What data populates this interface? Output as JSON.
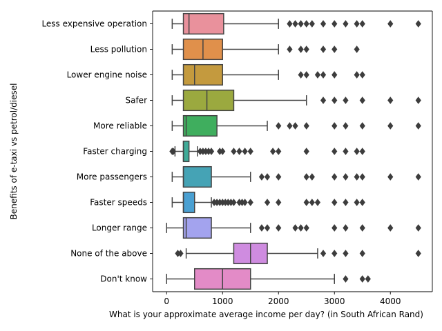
{
  "chart_data": {
    "type": "boxplot",
    "orientation": "horizontal",
    "xlabel": "What is your approximate average income per day? (in South African Rand)",
    "ylabel": "Benefits of e-taxi vs petrol/diesel",
    "xlim": [
      -250,
      4750
    ],
    "xticks": [
      0,
      1000,
      2000,
      3000,
      4000
    ],
    "grid": false,
    "categories": [
      "Less expensive operation",
      "Less pollution",
      "Lower engine noise",
      "Safer",
      "More reliable",
      "Faster charging",
      "More passengers",
      "Faster speeds",
      "Longer range",
      "None of the above",
      "Don't know"
    ],
    "boxes": [
      {
        "category": "Less expensive operation",
        "color": "#e9919c",
        "whisker_low": 100,
        "q1": 300,
        "median": 400,
        "q3": 1020,
        "whisker_high": 2000,
        "outliers": [
          2200,
          2300,
          2400,
          2500,
          2600,
          2800,
          3000,
          3200,
          3400,
          3500,
          4000,
          4500
        ]
      },
      {
        "category": "Less pollution",
        "color": "#e0904b",
        "whisker_low": 100,
        "q1": 300,
        "median": 650,
        "q3": 1000,
        "whisker_high": 2000,
        "outliers": [
          2200,
          2400,
          2500,
          2800,
          3000,
          3400
        ]
      },
      {
        "category": "Lower engine noise",
        "color": "#c49a3e",
        "whisker_low": 100,
        "q1": 300,
        "median": 500,
        "q3": 1000,
        "whisker_high": 2000,
        "outliers": [
          2400,
          2500,
          2700,
          2800,
          3000,
          3400,
          3500
        ]
      },
      {
        "category": "Safer",
        "color": "#9ba93f",
        "whisker_low": 100,
        "q1": 300,
        "median": 720,
        "q3": 1200,
        "whisker_high": 2500,
        "outliers": [
          2800,
          3000,
          3200,
          3500,
          4000,
          4500
        ]
      },
      {
        "category": "More reliable",
        "color": "#3fae5e",
        "whisker_low": 100,
        "q1": 300,
        "median": 350,
        "q3": 900,
        "whisker_high": 1800,
        "outliers": [
          2000,
          2200,
          2300,
          2500,
          3000,
          3200,
          3500,
          4000,
          4500
        ]
      },
      {
        "category": "Faster charging",
        "color": "#40ab98",
        "whisker_low": 150,
        "q1": 300,
        "median": 300,
        "q3": 400,
        "whisker_high": 550,
        "outliers": [
          100,
          120,
          600,
          650,
          700,
          750,
          800,
          950,
          1000,
          1200,
          1300,
          1400,
          1500,
          1900,
          2000,
          2500,
          3000,
          3200,
          3400,
          3500
        ]
      },
      {
        "category": "More passengers",
        "color": "#45a3b5",
        "whisker_low": 100,
        "q1": 300,
        "median": 300,
        "q3": 800,
        "whisker_high": 1500,
        "outliers": [
          1700,
          1800,
          2000,
          2500,
          2600,
          3000,
          3200,
          3400,
          3500,
          4000,
          4500
        ]
      },
      {
        "category": "Faster speeds",
        "color": "#4aa0d2",
        "whisker_low": 100,
        "q1": 300,
        "median": 300,
        "q3": 500,
        "whisker_high": 800,
        "outliers": [
          850,
          900,
          950,
          1000,
          1050,
          1100,
          1150,
          1200,
          1300,
          1350,
          1400,
          1500,
          1800,
          2000,
          2500,
          2600,
          2700,
          3000,
          3200,
          3400,
          3500
        ]
      },
      {
        "category": "Longer range",
        "color": "#a3a3ee",
        "whisker_low": 0,
        "q1": 300,
        "median": 350,
        "q3": 800,
        "whisker_high": 1500,
        "outliers": [
          1700,
          1800,
          2000,
          2300,
          2400,
          2500,
          3000,
          3200,
          3500,
          4000,
          4500
        ]
      },
      {
        "category": "None of the above",
        "color": "#cf8ce0",
        "whisker_low": 350,
        "q1": 1200,
        "median": 1500,
        "q3": 1800,
        "whisker_high": 2700,
        "outliers": [
          200,
          250,
          2800,
          3000,
          3200,
          3500,
          4500
        ]
      },
      {
        "category": "Don't know",
        "color": "#e38bc7",
        "whisker_low": 0,
        "q1": 500,
        "median": 1000,
        "q3": 1500,
        "whisker_high": 3000,
        "outliers": [
          3200,
          3500,
          3600
        ]
      }
    ]
  }
}
